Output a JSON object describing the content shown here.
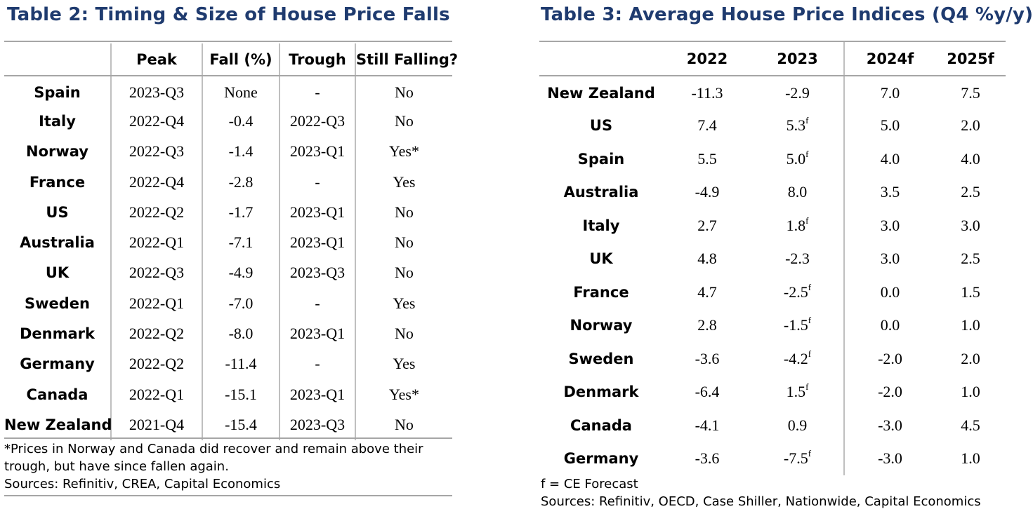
{
  "table2": {
    "title": "Table 2: Timing & Size of House Price Falls",
    "columns": [
      "",
      "Peak",
      "Fall (%)",
      "Trough",
      "Still Falling?"
    ],
    "rows": [
      {
        "country": "Spain",
        "peak": "2023-Q3",
        "fall": "None",
        "trough": "-",
        "still_falling": "No"
      },
      {
        "country": "Italy",
        "peak": "2022-Q4",
        "fall": "-0.4",
        "trough": "2022-Q3",
        "still_falling": "No"
      },
      {
        "country": "Norway",
        "peak": "2022-Q3",
        "fall": "-1.4",
        "trough": "2023-Q1",
        "still_falling": "Yes*"
      },
      {
        "country": "France",
        "peak": "2022-Q4",
        "fall": "-2.8",
        "trough": "-",
        "still_falling": "Yes"
      },
      {
        "country": "US",
        "peak": "2022-Q2",
        "fall": "-1.7",
        "trough": "2023-Q1",
        "still_falling": "No"
      },
      {
        "country": "Australia",
        "peak": "2022-Q1",
        "fall": "-7.1",
        "trough": "2023-Q1",
        "still_falling": "No"
      },
      {
        "country": "UK",
        "peak": "2022-Q3",
        "fall": "-4.9",
        "trough": "2023-Q3",
        "still_falling": "No"
      },
      {
        "country": "Sweden",
        "peak": "2022-Q1",
        "fall": "-7.0",
        "trough": "-",
        "still_falling": "Yes"
      },
      {
        "country": "Denmark",
        "peak": "2022-Q2",
        "fall": "-8.0",
        "trough": "2023-Q1",
        "still_falling": "No"
      },
      {
        "country": "Germany",
        "peak": "2022-Q2",
        "fall": "-11.4",
        "trough": "-",
        "still_falling": "Yes"
      },
      {
        "country": "Canada",
        "peak": "2022-Q1",
        "fall": "-15.1",
        "trough": "2023-Q1",
        "still_falling": "Yes*"
      },
      {
        "country": "New Zealand",
        "peak": "2021-Q4",
        "fall": "-15.4",
        "trough": "2023-Q3",
        "still_falling": "No"
      }
    ],
    "notes": [
      "*Prices in Norway and Canada did recover and remain above their",
      "trough, but have since fallen again.",
      "Sources: Refinitiv, CREA, Capital Economics"
    ]
  },
  "table3": {
    "title": "Table 3: Average House Price Indices (Q4 %y/y)",
    "columns": [
      "",
      "2022",
      "2023",
      "2024f",
      "2025f"
    ],
    "rows": [
      {
        "country": "New Zealand",
        "y2022": "-11.3",
        "y2023": "-2.9",
        "y2023_sup": "",
        "y2024f": "7.0",
        "y2025f": "7.5"
      },
      {
        "country": "US",
        "y2022": "7.4",
        "y2023": "5.3",
        "y2023_sup": "f",
        "y2024f": "5.0",
        "y2025f": "2.0"
      },
      {
        "country": "Spain",
        "y2022": "5.5",
        "y2023": "5.0",
        "y2023_sup": "f",
        "y2024f": "4.0",
        "y2025f": "4.0"
      },
      {
        "country": "Australia",
        "y2022": "-4.9",
        "y2023": "8.0",
        "y2023_sup": "",
        "y2024f": "3.5",
        "y2025f": "2.5"
      },
      {
        "country": "Italy",
        "y2022": "2.7",
        "y2023": "1.8",
        "y2023_sup": "f",
        "y2024f": "3.0",
        "y2025f": "3.0"
      },
      {
        "country": "UK",
        "y2022": "4.8",
        "y2023": "-2.3",
        "y2023_sup": "",
        "y2024f": "3.0",
        "y2025f": "2.5"
      },
      {
        "country": "France",
        "y2022": "4.7",
        "y2023": "-2.5",
        "y2023_sup": "f",
        "y2024f": "0.0",
        "y2025f": "1.5"
      },
      {
        "country": "Norway",
        "y2022": "2.8",
        "y2023": "-1.5",
        "y2023_sup": "f",
        "y2024f": "0.0",
        "y2025f": "1.0"
      },
      {
        "country": "Sweden",
        "y2022": "-3.6",
        "y2023": "-4.2",
        "y2023_sup": "f",
        "y2024f": "-2.0",
        "y2025f": "2.0"
      },
      {
        "country": "Denmark",
        "y2022": "-6.4",
        "y2023": "1.5",
        "y2023_sup": "f",
        "y2024f": "-2.0",
        "y2025f": "1.0"
      },
      {
        "country": "Canada",
        "y2022": "-4.1",
        "y2023": "0.9",
        "y2023_sup": "",
        "y2024f": "-3.0",
        "y2025f": "4.5"
      },
      {
        "country": "Germany",
        "y2022": "-3.6",
        "y2023": "-7.5",
        "y2023_sup": "f",
        "y2024f": "-3.0",
        "y2025f": "1.0"
      }
    ],
    "notes": [
      "f = CE Forecast",
      "Sources: Refinitiv, OECD, Case Shiller, Nationwide, Capital Economics"
    ]
  }
}
